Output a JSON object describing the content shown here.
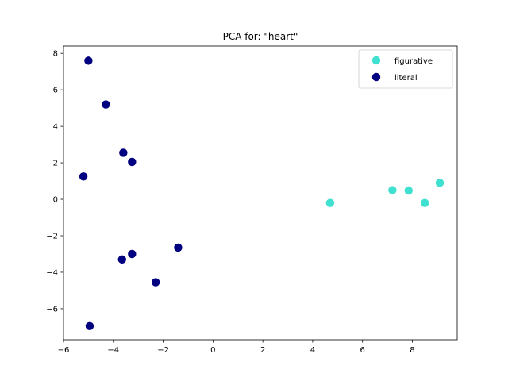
{
  "chart_data": {
    "type": "scatter",
    "title": "PCA for: \"heart\"",
    "xlabel": "",
    "ylabel": "",
    "xlim": [
      -6,
      9.8
    ],
    "ylim": [
      -7.7,
      8.4
    ],
    "xticks": [
      -6,
      -4,
      -2,
      0,
      2,
      4,
      6,
      8
    ],
    "yticks": [
      -6,
      -4,
      -2,
      0,
      2,
      4,
      6,
      8
    ],
    "xtick_labels": [
      "−6",
      "−4",
      "−2",
      "0",
      "2",
      "4",
      "6",
      "8"
    ],
    "ytick_labels": [
      "−6",
      "−4",
      "−2",
      "0",
      "2",
      "4",
      "6",
      "8"
    ],
    "grid": false,
    "legend_position": "top-right",
    "series": [
      {
        "name": "figurative",
        "color": "#40e0d0",
        "points": [
          {
            "x": 4.7,
            "y": -0.2
          },
          {
            "x": 7.2,
            "y": 0.5
          },
          {
            "x": 7.85,
            "y": 0.48
          },
          {
            "x": 8.5,
            "y": -0.2
          },
          {
            "x": 9.1,
            "y": 0.9
          }
        ]
      },
      {
        "name": "literal",
        "color": "#000080",
        "points": [
          {
            "x": -5.0,
            "y": 7.6
          },
          {
            "x": -4.3,
            "y": 5.2
          },
          {
            "x": -3.6,
            "y": 2.55
          },
          {
            "x": -3.25,
            "y": 2.05
          },
          {
            "x": -5.2,
            "y": 1.25
          },
          {
            "x": -1.4,
            "y": -2.65
          },
          {
            "x": -3.25,
            "y": -3.0
          },
          {
            "x": -3.65,
            "y": -3.3
          },
          {
            "x": -2.3,
            "y": -4.55
          },
          {
            "x": -4.95,
            "y": -6.95
          }
        ]
      }
    ]
  }
}
